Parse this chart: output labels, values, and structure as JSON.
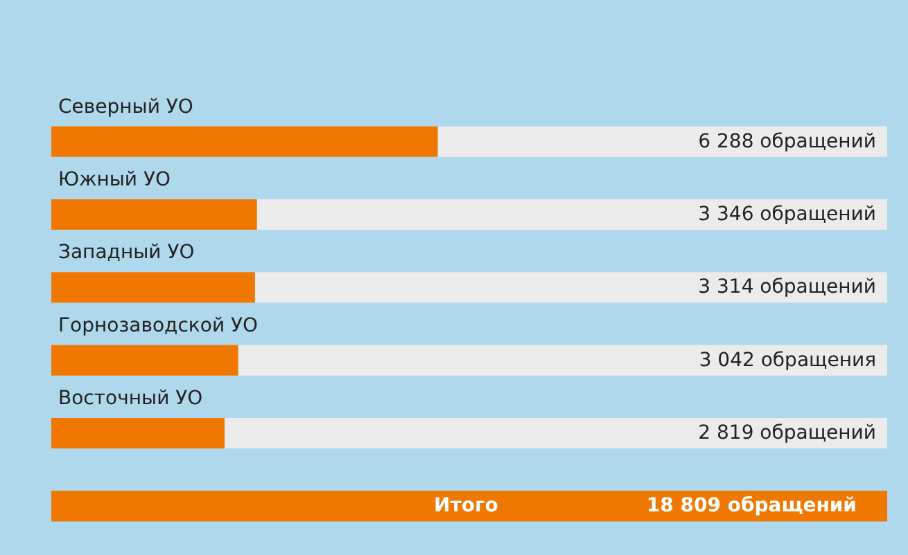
{
  "chart_data": {
    "type": "bar",
    "orientation": "horizontal",
    "categories": [
      "Северный УО",
      "Южный УО",
      "Западный УО",
      "Горнозаводской УО",
      "Восточный УО"
    ],
    "values": [
      6288,
      3346,
      3314,
      3042,
      2819
    ],
    "value_labels": [
      "6 288 обращений",
      "3 346 обращений",
      "3 314 обращений",
      "3 042 обращения",
      "2 819 обращений"
    ],
    "color": "#f07800",
    "xlim": [
      0,
      13600
    ],
    "annotations": [
      "Итого",
      "18 809 обращений"
    ]
  }
}
